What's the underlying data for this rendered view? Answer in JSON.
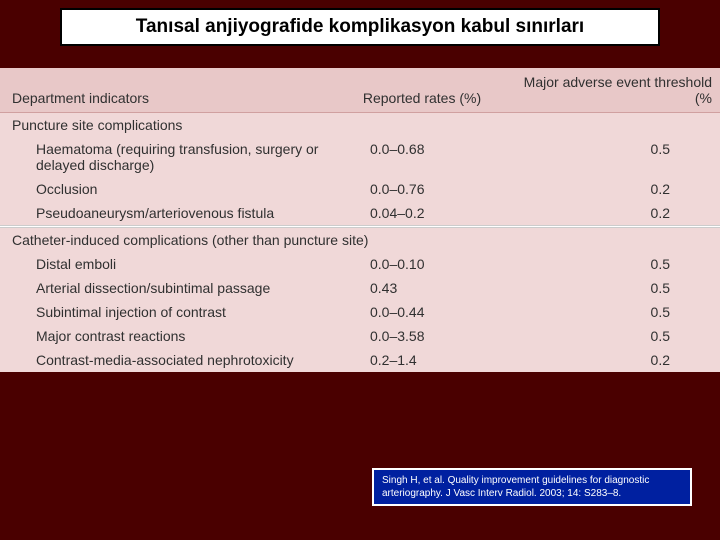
{
  "title": "Tanısal anjiyografide komplikasyon kabul sınırları",
  "table": {
    "headers": {
      "indicator": "Department indicators",
      "rate": "Reported rates (%)",
      "threshold": "Major adverse event threshold (%"
    },
    "section1": {
      "heading": "Puncture site complications",
      "rows": [
        {
          "label": "Haematoma (requiring transfusion, surgery or delayed discharge)",
          "rate": "0.0–0.68",
          "thresh": "0.5"
        },
        {
          "label": "Occlusion",
          "rate": "0.0–0.76",
          "thresh": "0.2"
        },
        {
          "label": "Pseudoaneurysm/arteriovenous fistula",
          "rate": "0.04–0.2",
          "thresh": "0.2"
        }
      ]
    },
    "section2": {
      "heading": "Catheter-induced complications (other than puncture site)",
      "rows": [
        {
          "label": "Distal emboli",
          "rate": "0.0–0.10",
          "thresh": "0.5"
        },
        {
          "label": "Arterial dissection/subintimal passage",
          "rate": "0.43",
          "thresh": "0.5"
        },
        {
          "label": "Subintimal injection of contrast",
          "rate": "0.0–0.44",
          "thresh": "0.5"
        },
        {
          "label": "Major contrast reactions",
          "rate": "0.0–3.58",
          "thresh": "0.5"
        },
        {
          "label": "Contrast-media-associated nephrotoxicity",
          "rate": "0.2–1.4",
          "thresh": "0.2"
        }
      ]
    }
  },
  "citation": "Singh H, et al. Quality improvement guidelines for diagnostic arteriography. J Vasc Interv Radiol. 2003; 14: S283–8.",
  "colors": {
    "page_bg": "#4a0000",
    "title_bg": "#ffffff",
    "title_border": "#000000",
    "header_row_bg": "#e8c8c8",
    "body_row_bg": "#f0d8d8",
    "citation_bg": "#0020a0",
    "citation_border": "#ffffff",
    "text": "#303030"
  }
}
